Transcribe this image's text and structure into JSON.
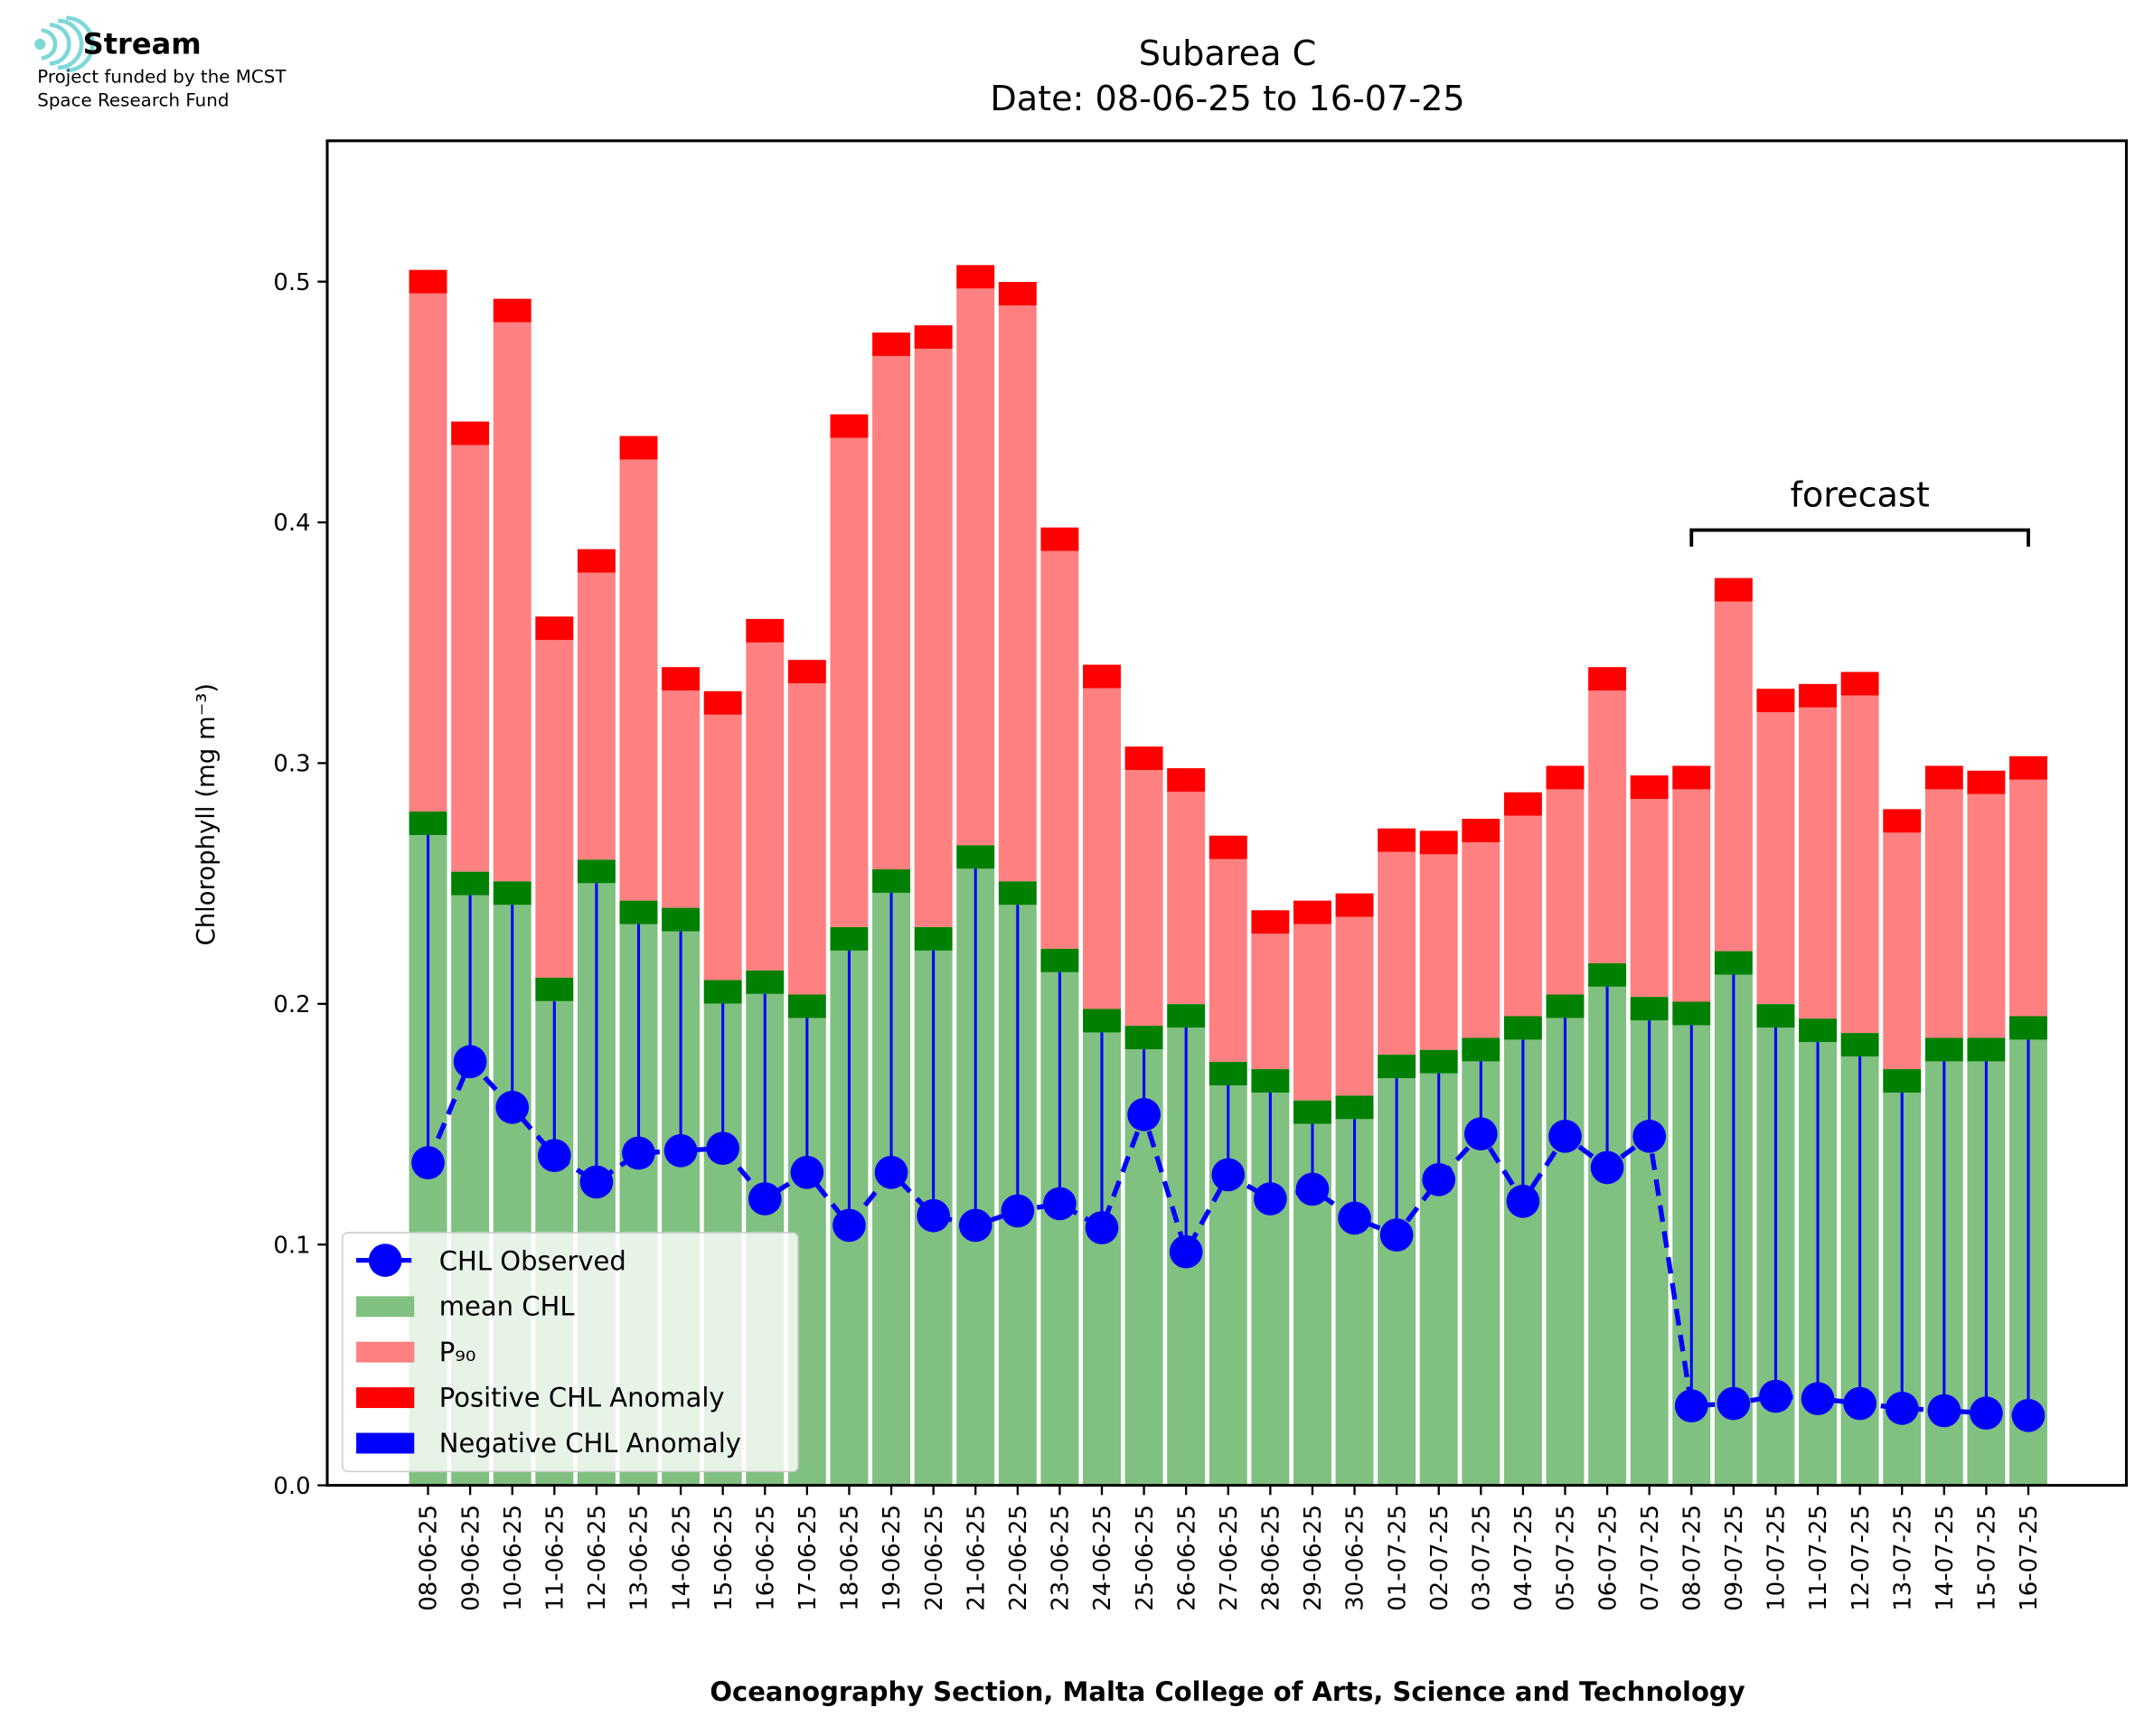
{
  "logo": {
    "name": "Stream",
    "lines": [
      "Project funded by the MCST",
      "Space Research Fund"
    ]
  },
  "chart_data": {
    "type": "bar",
    "title": "Subarea C",
    "subtitle": "Date: 08-06-25 to 16-07-25",
    "y_label": "Chlorophyll (mg m⁻³)",
    "x_label": "Oceanography Section, Malta College of Arts, Science and Technology",
    "categories": [
      "08-06-25",
      "09-06-25",
      "10-06-25",
      "11-06-25",
      "12-06-25",
      "13-06-25",
      "14-06-25",
      "15-06-25",
      "16-06-25",
      "17-06-25",
      "18-06-25",
      "19-06-25",
      "20-06-25",
      "21-06-25",
      "22-06-25",
      "23-06-25",
      "24-06-25",
      "25-06-25",
      "26-06-25",
      "27-06-25",
      "28-06-25",
      "29-06-25",
      "30-06-25",
      "01-07-25",
      "02-07-25",
      "03-07-25",
      "04-07-25",
      "05-07-25",
      "06-07-25",
      "07-07-25",
      "08-07-25",
      "09-07-25",
      "10-07-25",
      "11-07-25",
      "12-07-25",
      "13-07-25",
      "14-07-25",
      "15-07-25",
      "16-07-25"
    ],
    "series": [
      {
        "name": "CHL Observed",
        "color": "#0000ff",
        "values": [
          0.134,
          0.176,
          0.157,
          0.137,
          0.126,
          0.138,
          0.139,
          0.14,
          0.119,
          0.13,
          0.108,
          0.13,
          0.112,
          0.108,
          0.114,
          0.117,
          0.107,
          0.154,
          0.097,
          0.129,
          0.119,
          0.123,
          0.111,
          0.104,
          0.127,
          0.146,
          0.118,
          0.145,
          0.132,
          0.145,
          0.033,
          0.034,
          0.037,
          0.036,
          0.034,
          0.032,
          0.031,
          0.03,
          0.029
        ]
      },
      {
        "name": "mean CHL",
        "color": "#80c080",
        "band_color": "#008000",
        "values": [
          0.275,
          0.25,
          0.246,
          0.206,
          0.255,
          0.238,
          0.235,
          0.205,
          0.209,
          0.199,
          0.227,
          0.251,
          0.227,
          0.261,
          0.246,
          0.218,
          0.193,
          0.186,
          0.195,
          0.171,
          0.168,
          0.155,
          0.157,
          0.174,
          0.176,
          0.181,
          0.19,
          0.199,
          0.212,
          0.198,
          0.196,
          0.217,
          0.195,
          0.189,
          0.183,
          0.168,
          0.181,
          0.181,
          0.19
        ]
      },
      {
        "name": "P₉₀",
        "color": "#ff8080",
        "band_color": "#ff0000",
        "values": [
          0.5,
          0.437,
          0.488,
          0.356,
          0.384,
          0.431,
          0.335,
          0.325,
          0.355,
          0.338,
          0.44,
          0.474,
          0.477,
          0.502,
          0.495,
          0.393,
          0.336,
          0.302,
          0.293,
          0.265,
          0.234,
          0.238,
          0.241,
          0.268,
          0.267,
          0.272,
          0.283,
          0.294,
          0.335,
          0.29,
          0.294,
          0.372,
          0.326,
          0.328,
          0.333,
          0.276,
          0.294,
          0.292,
          0.298
        ]
      }
    ],
    "anomaly_legend": [
      {
        "name": "Positive CHL Anomaly",
        "color": "#ff0000"
      },
      {
        "name": "Negative CHL Anomaly",
        "color": "#0000ff"
      }
    ],
    "annotation": {
      "text": "forecast",
      "start": "08-07-25",
      "end": "16-07-25"
    },
    "ylim": [
      0,
      0.5585
    ],
    "yticks": [
      {
        "value": 0,
        "label": "0.0"
      },
      0.1,
      0.2,
      0.3,
      0.4,
      0.5
    ],
    "legend": "lower left"
  }
}
